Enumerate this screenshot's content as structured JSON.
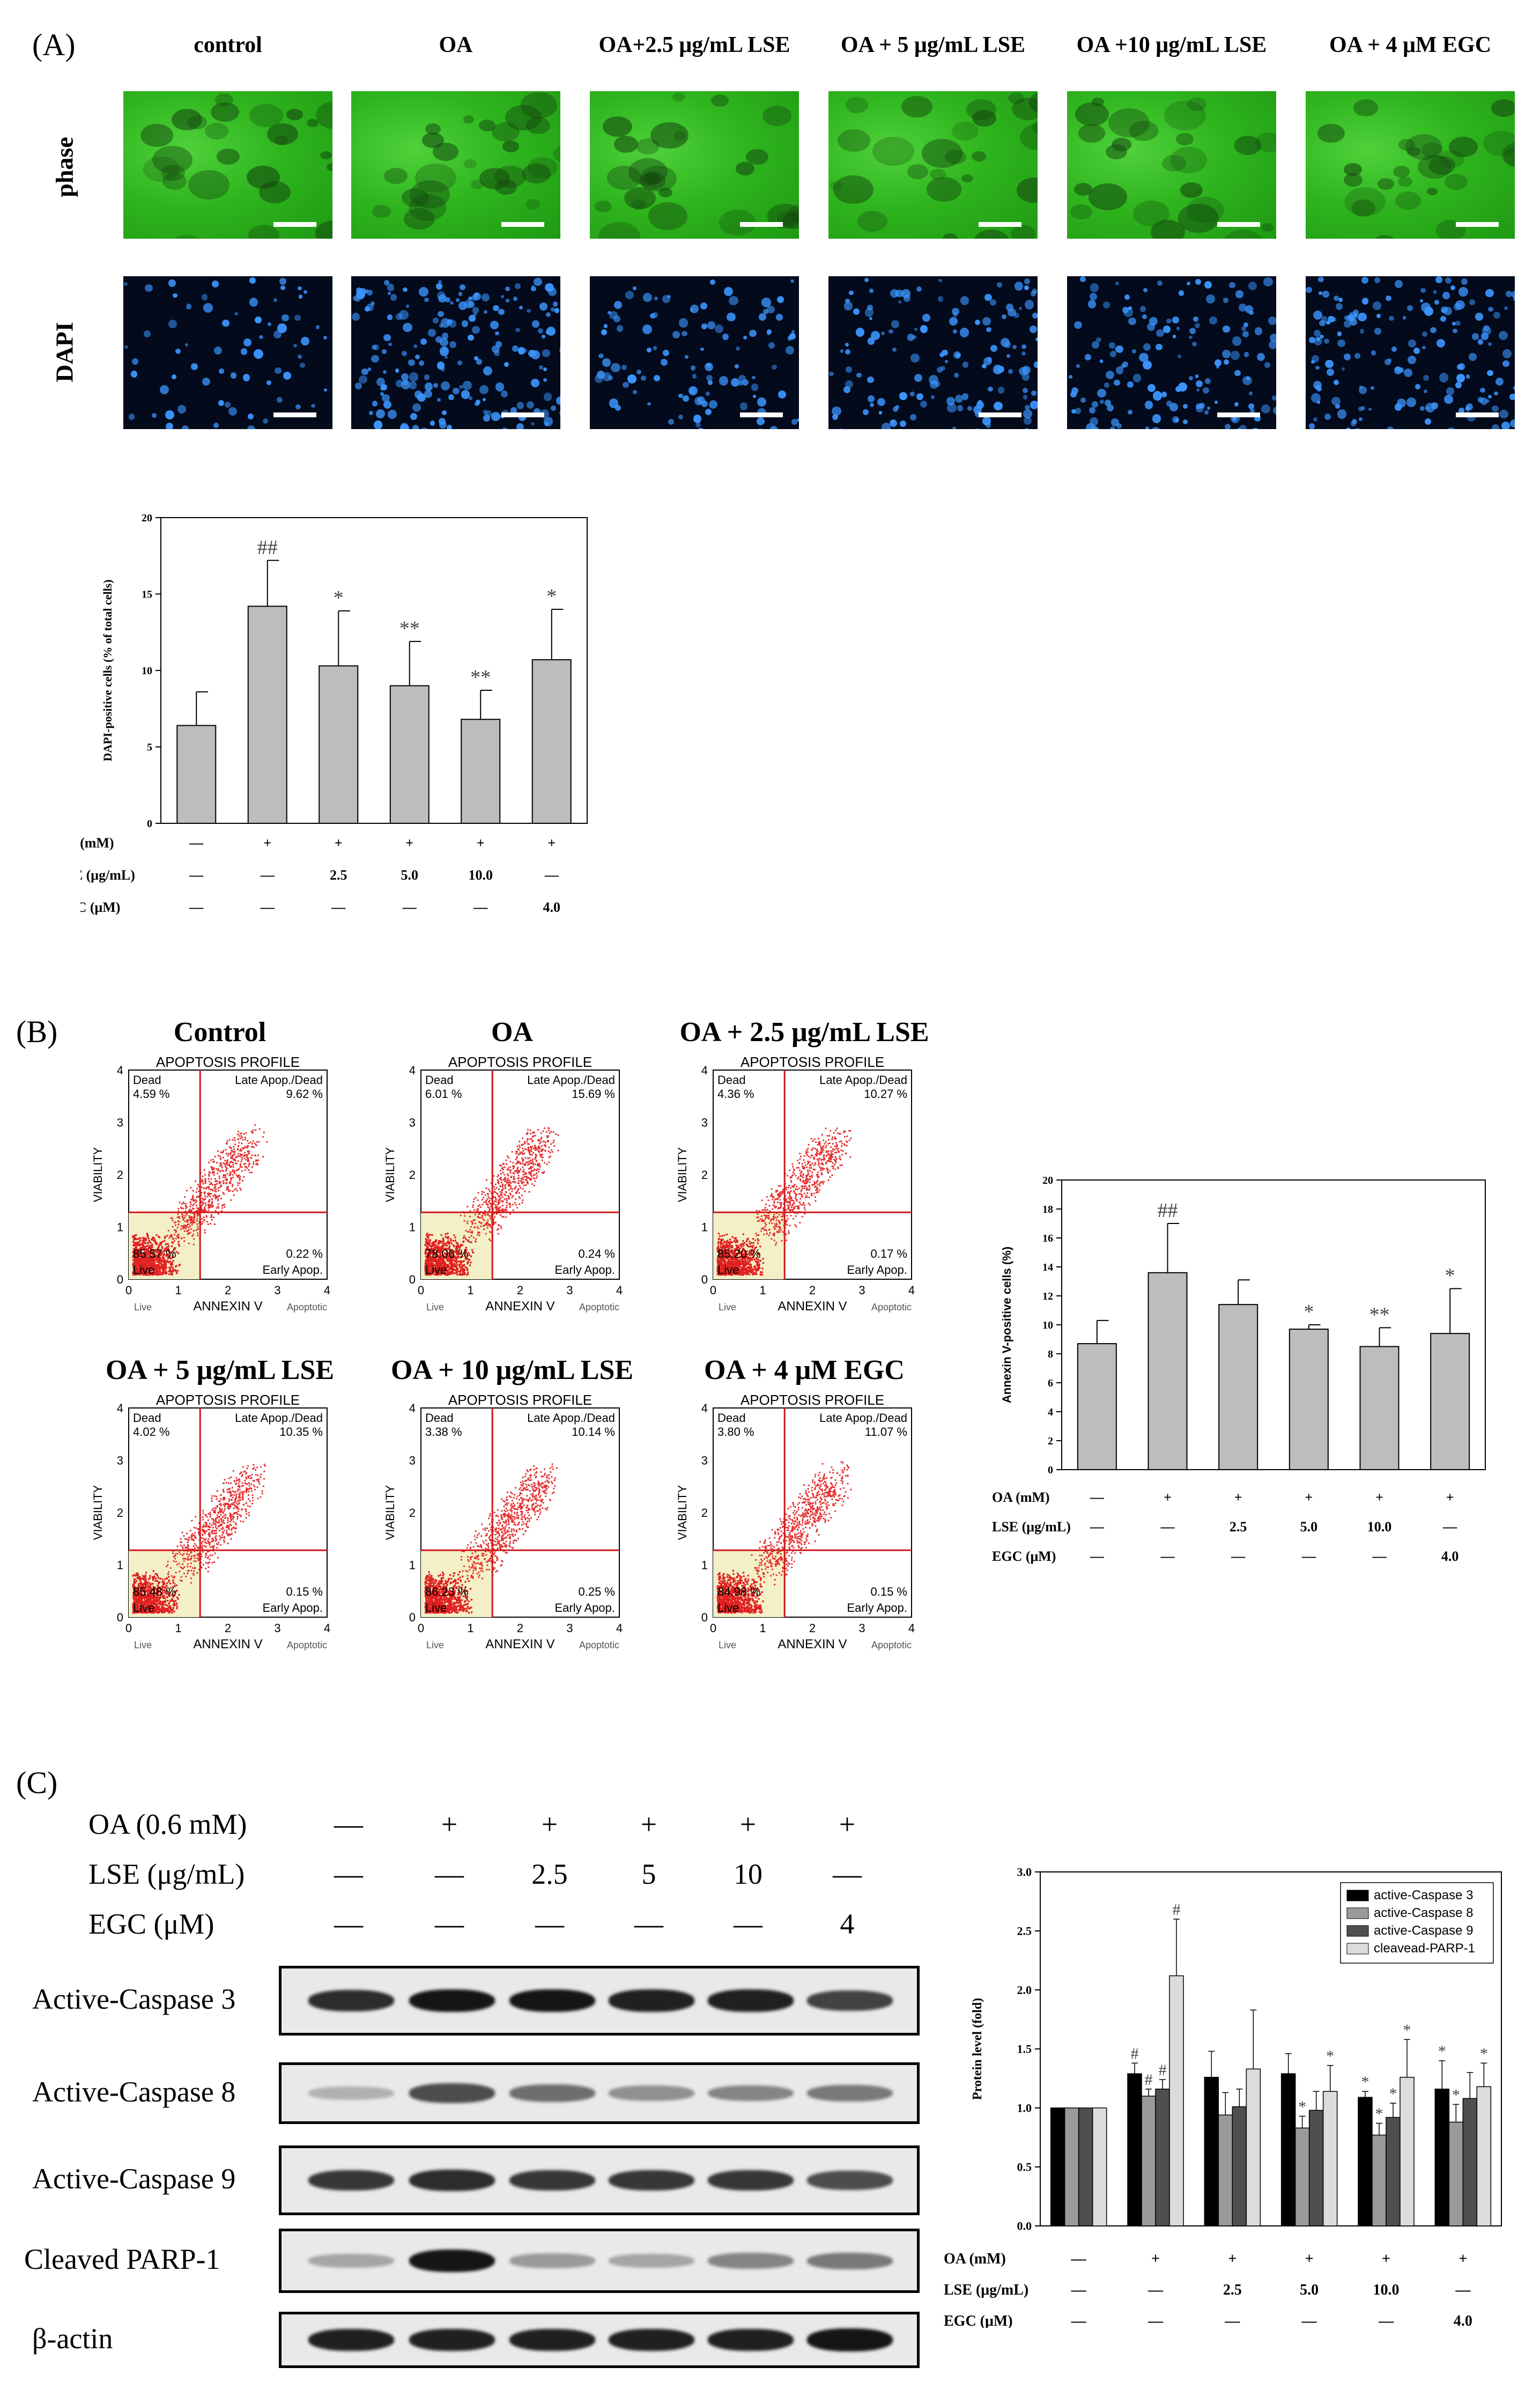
{
  "panel_a": {
    "letter": "(A)",
    "conditions": [
      "control",
      "OA",
      "OA+2.5 μg/mL LSE",
      "OA + 5 μg/mL LSE",
      "OA +10 μg/mL LSE",
      "OA + 4 μM EGC"
    ],
    "rows": [
      "phase",
      "DAPI"
    ]
  },
  "panel_b": {
    "letter": "(B)",
    "plots": [
      {
        "title": "Control",
        "profile": "APOPTOSIS PROFILE",
        "dead": "4.59 %",
        "late": "9.62 %",
        "live": "85.57 %",
        "early": "0.22 %"
      },
      {
        "title": "OA",
        "profile": "APOPTOSIS PROFILE",
        "dead": "6.01 %",
        "late": "15.69 %",
        "live": "78.06 %",
        "early": "0.24 %"
      },
      {
        "title": "OA + 2.5 μg/mL LSE",
        "profile": "APOPTOSIS PROFILE",
        "dead": "4.36 %",
        "late": "10.27 %",
        "live": "85.20 %",
        "early": "0.17 %"
      },
      {
        "title": "OA + 5 μg/mL LSE",
        "profile": "APOPTOSIS PROFILE",
        "dead": "4.02 %",
        "late": "10.35 %",
        "live": "85.48 %",
        "early": "0.15 %"
      },
      {
        "title": "OA + 10 μg/mL LSE",
        "profile": "APOPTOSIS PROFILE",
        "dead": "3.38 %",
        "late": "10.14 %",
        "live": "86.23 %",
        "early": "0.25 %"
      },
      {
        "title": "OA + 4 μM EGC",
        "profile": "APOPTOSIS PROFILE",
        "dead": "3.80 %",
        "late": "11.07 %",
        "live": "84.98 %",
        "early": "0.15 %"
      }
    ],
    "quadrant_labels": {
      "dead": "Dead",
      "late": "Late Apop./Dead",
      "early": "Early Apop.",
      "live": "Live"
    },
    "axis": {
      "y": "VIABILITY",
      "x": "ANNEXIN V",
      "x_left": "Live",
      "x_right": "Apoptotic",
      "ticks": [
        "0",
        "1",
        "2",
        "3",
        "4"
      ]
    }
  },
  "panel_c": {
    "letter": "(C)",
    "treatment_rows": [
      {
        "label": "OA (0.6 mM)",
        "values": [
          "—",
          "+",
          "+",
          "+",
          "+",
          "+"
        ]
      },
      {
        "label": "LSE (μg/mL)",
        "values": [
          "—",
          "—",
          "2.5",
          "5",
          "10",
          "—"
        ]
      },
      {
        "label": "EGC (μM)",
        "values": [
          "—",
          "—",
          "—",
          "—",
          "—",
          "4"
        ]
      }
    ],
    "blots": [
      "Active-Caspase 3",
      "Active-Caspase 8",
      "Active-Caspase 9",
      "Cleaved PARP-1",
      "β-actin"
    ]
  },
  "chart_data": [
    {
      "type": "bar",
      "id": "dapi-chart",
      "ylabel": "DAPI-positive cells (% of total cells)",
      "ylim": [
        0,
        20
      ],
      "yticks": [
        "0",
        "5",
        "10",
        "15",
        "20"
      ],
      "values": [
        6.4,
        14.2,
        10.3,
        9.0,
        6.8,
        10.7
      ],
      "errors": [
        2.2,
        3.0,
        3.6,
        2.9,
        1.9,
        3.3
      ],
      "annotations": [
        "",
        "##",
        "*",
        "**",
        "**",
        "*"
      ],
      "treatments": [
        {
          "label": "OA (mM)",
          "values": [
            "—",
            "+",
            "+",
            "+",
            "+",
            "+"
          ]
        },
        {
          "label": "LSE (μg/mL)",
          "values": [
            "—",
            "—",
            "2.5",
            "5.0",
            "10.0",
            "—"
          ]
        },
        {
          "label": "EGC (μM)",
          "values": [
            "—",
            "—",
            "—",
            "—",
            "—",
            "4.0"
          ]
        }
      ]
    },
    {
      "type": "bar",
      "id": "annexin-chart",
      "ylabel": "Annexin V-positive cells (%)",
      "ylim": [
        0,
        20
      ],
      "yticks": [
        "0",
        "2",
        "4",
        "6",
        "8",
        "10",
        "12",
        "14",
        "16",
        "18",
        "20"
      ],
      "values": [
        8.7,
        13.6,
        11.4,
        9.7,
        8.5,
        9.4
      ],
      "errors": [
        1.6,
        3.4,
        1.7,
        0.3,
        1.3,
        3.1
      ],
      "annotations": [
        "",
        "##",
        "",
        "*",
        "**",
        "*"
      ],
      "treatments": [
        {
          "label": "OA (mM)",
          "values": [
            "—",
            "+",
            "+",
            "+",
            "+",
            "+"
          ]
        },
        {
          "label": "LSE (μg/mL)",
          "values": [
            "—",
            "—",
            "2.5",
            "5.0",
            "10.0",
            "—"
          ]
        },
        {
          "label": "EGC (μM)",
          "values": [
            "—",
            "—",
            "—",
            "—",
            "—",
            "4.0"
          ]
        }
      ]
    },
    {
      "type": "bar",
      "id": "protein-chart",
      "ylabel": "Protein level (fold)",
      "ylim": [
        0,
        3.0
      ],
      "yticks": [
        "0.0",
        "0.5",
        "1.0",
        "1.5",
        "2.0",
        "2.5",
        "3.0"
      ],
      "series": [
        {
          "name": "active-Caspase 3",
          "color": "#000000",
          "values": [
            1.0,
            1.29,
            1.26,
            1.29,
            1.09,
            1.16
          ],
          "errors": [
            0,
            0.09,
            0.22,
            0.17,
            0.05,
            0.24
          ],
          "annotations": [
            "",
            "#",
            "",
            "",
            "*",
            "*"
          ]
        },
        {
          "name": "active-Caspase 8",
          "color": "#9a9a9a",
          "values": [
            1.0,
            1.1,
            0.94,
            0.83,
            0.77,
            0.88
          ],
          "errors": [
            0,
            0.06,
            0.19,
            0.1,
            0.1,
            0.15
          ],
          "annotations": [
            "",
            "#",
            "",
            "*",
            "*",
            "*"
          ]
        },
        {
          "name": "active-Caspase 9",
          "color": "#4f4f4f",
          "values": [
            1.0,
            1.16,
            1.01,
            0.98,
            0.92,
            1.08
          ],
          "errors": [
            0,
            0.08,
            0.15,
            0.16,
            0.12,
            0.22
          ],
          "annotations": [
            "",
            "#",
            "",
            "",
            "*",
            ""
          ]
        },
        {
          "name": "cleavead-PARP-1",
          "color": "#dcdcdc",
          "values": [
            1.0,
            2.12,
            1.33,
            1.14,
            1.26,
            1.18
          ],
          "errors": [
            0,
            0.48,
            0.5,
            0.22,
            0.32,
            0.2
          ],
          "annotations": [
            "",
            "#",
            "",
            "*",
            "*",
            "*"
          ]
        }
      ],
      "treatments": [
        {
          "label": "OA (mM)",
          "values": [
            "—",
            "+",
            "+",
            "+",
            "+",
            "+"
          ]
        },
        {
          "label": "LSE (μg/mL)",
          "values": [
            "—",
            "—",
            "2.5",
            "5.0",
            "10.0",
            "—"
          ]
        },
        {
          "label": "EGC (μM)",
          "values": [
            "—",
            "—",
            "—",
            "—",
            "—",
            "4.0"
          ]
        }
      ]
    }
  ]
}
